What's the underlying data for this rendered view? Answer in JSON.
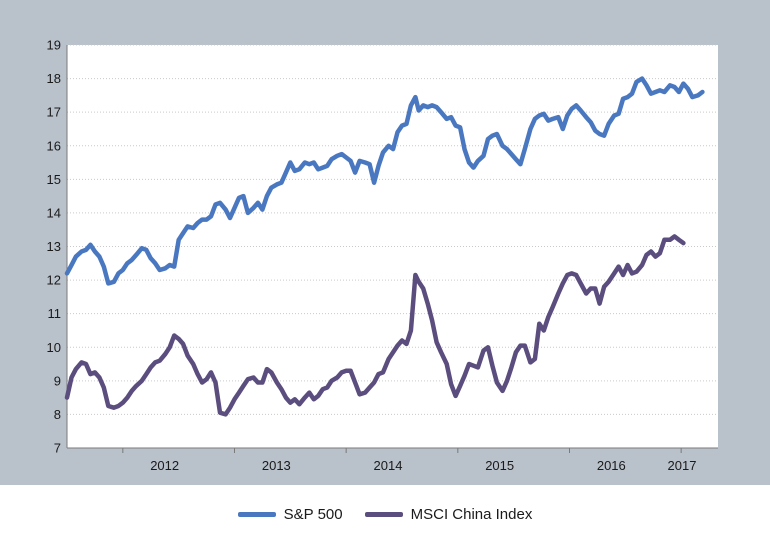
{
  "chart_data": {
    "type": "line",
    "title": "",
    "xlabel": "",
    "ylabel": "",
    "ylim": [
      7,
      19
    ],
    "yticks": [
      7,
      8,
      9,
      10,
      11,
      12,
      13,
      14,
      15,
      16,
      17,
      18,
      19
    ],
    "xlim": [
      2011.5,
      2017.33
    ],
    "xticks": [
      {
        "label": "2012",
        "x": 2012.0
      },
      {
        "label": "2013",
        "x": 2013.0
      },
      {
        "label": "2014",
        "x": 2014.0
      },
      {
        "label": "2015",
        "x": 2015.0
      },
      {
        "label": "2016",
        "x": 2016.0
      },
      {
        "label": "2017",
        "x": 2017.0
      }
    ],
    "grid": "y",
    "legend": "bottom",
    "series": [
      {
        "name": "S&P 500",
        "color": "#4a78c0",
        "points": [
          [
            2011.5,
            12.2
          ],
          [
            2011.54,
            12.45
          ],
          [
            2011.58,
            12.7
          ],
          [
            2011.63,
            12.85
          ],
          [
            2011.67,
            12.9
          ],
          [
            2011.71,
            13.05
          ],
          [
            2011.75,
            12.85
          ],
          [
            2011.79,
            12.7
          ],
          [
            2011.83,
            12.4
          ],
          [
            2011.87,
            11.9
          ],
          [
            2011.92,
            11.95
          ],
          [
            2011.96,
            12.2
          ],
          [
            2012.0,
            12.3
          ],
          [
            2012.04,
            12.5
          ],
          [
            2012.08,
            12.6
          ],
          [
            2012.12,
            12.75
          ],
          [
            2012.17,
            12.95
          ],
          [
            2012.21,
            12.9
          ],
          [
            2012.25,
            12.65
          ],
          [
            2012.29,
            12.5
          ],
          [
            2012.33,
            12.3
          ],
          [
            2012.38,
            12.35
          ],
          [
            2012.42,
            12.45
          ],
          [
            2012.46,
            12.4
          ],
          [
            2012.5,
            13.2
          ],
          [
            2012.54,
            13.4
          ],
          [
            2012.58,
            13.6
          ],
          [
            2012.63,
            13.55
          ],
          [
            2012.67,
            13.7
          ],
          [
            2012.71,
            13.8
          ],
          [
            2012.75,
            13.8
          ],
          [
            2012.79,
            13.9
          ],
          [
            2012.83,
            14.25
          ],
          [
            2012.87,
            14.3
          ],
          [
            2012.92,
            14.1
          ],
          [
            2012.96,
            13.85
          ],
          [
            2013.0,
            14.15
          ],
          [
            2013.04,
            14.45
          ],
          [
            2013.08,
            14.5
          ],
          [
            2013.12,
            14.0
          ],
          [
            2013.17,
            14.15
          ],
          [
            2013.21,
            14.3
          ],
          [
            2013.25,
            14.1
          ],
          [
            2013.29,
            14.5
          ],
          [
            2013.33,
            14.75
          ],
          [
            2013.38,
            14.85
          ],
          [
            2013.42,
            14.9
          ],
          [
            2013.46,
            15.2
          ],
          [
            2013.5,
            15.5
          ],
          [
            2013.54,
            15.25
          ],
          [
            2013.58,
            15.3
          ],
          [
            2013.63,
            15.5
          ],
          [
            2013.67,
            15.45
          ],
          [
            2013.71,
            15.5
          ],
          [
            2013.75,
            15.3
          ],
          [
            2013.79,
            15.35
          ],
          [
            2013.83,
            15.4
          ],
          [
            2013.87,
            15.6
          ],
          [
            2013.92,
            15.7
          ],
          [
            2013.96,
            15.75
          ],
          [
            2014.0,
            15.65
          ],
          [
            2014.04,
            15.55
          ],
          [
            2014.08,
            15.2
          ],
          [
            2014.12,
            15.55
          ],
          [
            2014.17,
            15.5
          ],
          [
            2014.21,
            15.45
          ],
          [
            2014.25,
            14.9
          ],
          [
            2014.29,
            15.4
          ],
          [
            2014.33,
            15.8
          ],
          [
            2014.38,
            16.0
          ],
          [
            2014.42,
            15.9
          ],
          [
            2014.46,
            16.4
          ],
          [
            2014.5,
            16.6
          ],
          [
            2014.54,
            16.65
          ],
          [
            2014.58,
            17.2
          ],
          [
            2014.62,
            17.45
          ],
          [
            2014.65,
            17.05
          ],
          [
            2014.69,
            17.2
          ],
          [
            2014.73,
            17.15
          ],
          [
            2014.77,
            17.2
          ],
          [
            2014.81,
            17.15
          ],
          [
            2014.85,
            17.0
          ],
          [
            2014.9,
            16.8
          ],
          [
            2014.94,
            16.85
          ],
          [
            2014.98,
            16.6
          ],
          [
            2015.02,
            16.55
          ],
          [
            2015.06,
            15.9
          ],
          [
            2015.1,
            15.5
          ],
          [
            2015.14,
            15.35
          ],
          [
            2015.18,
            15.55
          ],
          [
            2015.23,
            15.7
          ],
          [
            2015.27,
            16.2
          ],
          [
            2015.31,
            16.3
          ],
          [
            2015.35,
            16.35
          ],
          [
            2015.4,
            16.0
          ],
          [
            2015.44,
            15.9
          ],
          [
            2015.48,
            15.75
          ],
          [
            2015.52,
            15.6
          ],
          [
            2015.56,
            15.45
          ],
          [
            2015.6,
            15.9
          ],
          [
            2015.65,
            16.5
          ],
          [
            2015.69,
            16.8
          ],
          [
            2015.73,
            16.9
          ],
          [
            2015.77,
            16.95
          ],
          [
            2015.81,
            16.75
          ],
          [
            2015.85,
            16.8
          ],
          [
            2015.9,
            16.85
          ],
          [
            2015.94,
            16.5
          ],
          [
            2015.98,
            16.9
          ],
          [
            2016.02,
            17.1
          ],
          [
            2016.06,
            17.2
          ],
          [
            2016.1,
            17.05
          ],
          [
            2016.15,
            16.85
          ],
          [
            2016.19,
            16.7
          ],
          [
            2016.23,
            16.45
          ],
          [
            2016.27,
            16.35
          ],
          [
            2016.31,
            16.3
          ],
          [
            2016.35,
            16.65
          ],
          [
            2016.4,
            16.9
          ],
          [
            2016.44,
            16.95
          ],
          [
            2016.48,
            17.4
          ],
          [
            2016.52,
            17.45
          ],
          [
            2016.56,
            17.55
          ],
          [
            2016.6,
            17.9
          ],
          [
            2016.65,
            18.0
          ],
          [
            2016.69,
            17.8
          ],
          [
            2016.73,
            17.55
          ],
          [
            2016.77,
            17.6
          ],
          [
            2016.81,
            17.65
          ],
          [
            2016.85,
            17.6
          ],
          [
            2016.9,
            17.8
          ],
          [
            2016.94,
            17.75
          ],
          [
            2016.98,
            17.6
          ],
          [
            2017.02,
            17.85
          ],
          [
            2017.06,
            17.7
          ],
          [
            2017.1,
            17.45
          ],
          [
            2017.15,
            17.5
          ],
          [
            2017.19,
            17.6
          ]
        ]
      },
      {
        "name": "MSCI China Index",
        "color": "#5b4e7e",
        "points": [
          [
            2011.5,
            8.5
          ],
          [
            2011.54,
            9.1
          ],
          [
            2011.58,
            9.35
          ],
          [
            2011.63,
            9.55
          ],
          [
            2011.67,
            9.5
          ],
          [
            2011.71,
            9.2
          ],
          [
            2011.75,
            9.25
          ],
          [
            2011.79,
            9.1
          ],
          [
            2011.83,
            8.8
          ],
          [
            2011.87,
            8.25
          ],
          [
            2011.92,
            8.2
          ],
          [
            2011.96,
            8.25
          ],
          [
            2012.0,
            8.35
          ],
          [
            2012.04,
            8.5
          ],
          [
            2012.08,
            8.7
          ],
          [
            2012.12,
            8.85
          ],
          [
            2012.17,
            9.0
          ],
          [
            2012.21,
            9.2
          ],
          [
            2012.25,
            9.4
          ],
          [
            2012.29,
            9.55
          ],
          [
            2012.33,
            9.6
          ],
          [
            2012.38,
            9.8
          ],
          [
            2012.42,
            10.0
          ],
          [
            2012.46,
            10.35
          ],
          [
            2012.5,
            10.25
          ],
          [
            2012.54,
            10.1
          ],
          [
            2012.58,
            9.75
          ],
          [
            2012.63,
            9.5
          ],
          [
            2012.67,
            9.2
          ],
          [
            2012.71,
            8.95
          ],
          [
            2012.75,
            9.05
          ],
          [
            2012.79,
            9.25
          ],
          [
            2012.83,
            8.95
          ],
          [
            2012.87,
            8.05
          ],
          [
            2012.92,
            8.0
          ],
          [
            2012.96,
            8.2
          ],
          [
            2013.0,
            8.45
          ],
          [
            2013.04,
            8.65
          ],
          [
            2013.08,
            8.85
          ],
          [
            2013.12,
            9.05
          ],
          [
            2013.17,
            9.1
          ],
          [
            2013.21,
            8.95
          ],
          [
            2013.25,
            8.95
          ],
          [
            2013.29,
            9.35
          ],
          [
            2013.33,
            9.25
          ],
          [
            2013.38,
            8.95
          ],
          [
            2013.42,
            8.75
          ],
          [
            2013.46,
            8.5
          ],
          [
            2013.5,
            8.35
          ],
          [
            2013.54,
            8.45
          ],
          [
            2013.58,
            8.3
          ],
          [
            2013.63,
            8.5
          ],
          [
            2013.67,
            8.65
          ],
          [
            2013.71,
            8.45
          ],
          [
            2013.75,
            8.55
          ],
          [
            2013.79,
            8.75
          ],
          [
            2013.83,
            8.8
          ],
          [
            2013.87,
            9.0
          ],
          [
            2013.92,
            9.1
          ],
          [
            2013.96,
            9.25
          ],
          [
            2014.0,
            9.3
          ],
          [
            2014.04,
            9.3
          ],
          [
            2014.08,
            8.95
          ],
          [
            2014.12,
            8.6
          ],
          [
            2014.17,
            8.65
          ],
          [
            2014.21,
            8.8
          ],
          [
            2014.25,
            8.95
          ],
          [
            2014.29,
            9.2
          ],
          [
            2014.33,
            9.25
          ],
          [
            2014.38,
            9.65
          ],
          [
            2014.42,
            9.85
          ],
          [
            2014.46,
            10.05
          ],
          [
            2014.5,
            10.2
          ],
          [
            2014.54,
            10.1
          ],
          [
            2014.58,
            10.5
          ],
          [
            2014.62,
            12.15
          ],
          [
            2014.65,
            11.95
          ],
          [
            2014.69,
            11.75
          ],
          [
            2014.73,
            11.3
          ],
          [
            2014.77,
            10.8
          ],
          [
            2014.81,
            10.15
          ],
          [
            2014.85,
            9.85
          ],
          [
            2014.9,
            9.5
          ],
          [
            2014.94,
            8.9
          ],
          [
            2014.98,
            8.55
          ],
          [
            2015.02,
            8.85
          ],
          [
            2015.06,
            9.15
          ],
          [
            2015.1,
            9.5
          ],
          [
            2015.14,
            9.45
          ],
          [
            2015.18,
            9.4
          ],
          [
            2015.23,
            9.9
          ],
          [
            2015.27,
            10.0
          ],
          [
            2015.31,
            9.45
          ],
          [
            2015.35,
            8.95
          ],
          [
            2015.4,
            8.7
          ],
          [
            2015.44,
            9.0
          ],
          [
            2015.48,
            9.4
          ],
          [
            2015.52,
            9.85
          ],
          [
            2015.56,
            10.05
          ],
          [
            2015.6,
            10.05
          ],
          [
            2015.65,
            9.55
          ],
          [
            2015.69,
            9.65
          ],
          [
            2015.73,
            10.7
          ],
          [
            2015.77,
            10.5
          ],
          [
            2015.81,
            10.9
          ],
          [
            2015.85,
            11.2
          ],
          [
            2015.9,
            11.6
          ],
          [
            2015.94,
            11.9
          ],
          [
            2015.98,
            12.15
          ],
          [
            2016.02,
            12.2
          ],
          [
            2016.06,
            12.15
          ],
          [
            2016.1,
            11.9
          ],
          [
            2016.15,
            11.6
          ],
          [
            2016.19,
            11.75
          ],
          [
            2016.23,
            11.75
          ],
          [
            2016.27,
            11.3
          ],
          [
            2016.31,
            11.8
          ],
          [
            2016.35,
            11.95
          ],
          [
            2016.4,
            12.2
          ],
          [
            2016.44,
            12.4
          ],
          [
            2016.48,
            12.15
          ],
          [
            2016.52,
            12.45
          ],
          [
            2016.56,
            12.2
          ],
          [
            2016.6,
            12.25
          ],
          [
            2016.65,
            12.45
          ],
          [
            2016.69,
            12.75
          ],
          [
            2016.73,
            12.85
          ],
          [
            2016.77,
            12.7
          ],
          [
            2016.81,
            12.8
          ],
          [
            2016.85,
            13.2
          ],
          [
            2016.9,
            13.2
          ],
          [
            2016.94,
            13.3
          ],
          [
            2016.98,
            13.2
          ],
          [
            2017.02,
            13.1
          ]
        ]
      }
    ]
  }
}
